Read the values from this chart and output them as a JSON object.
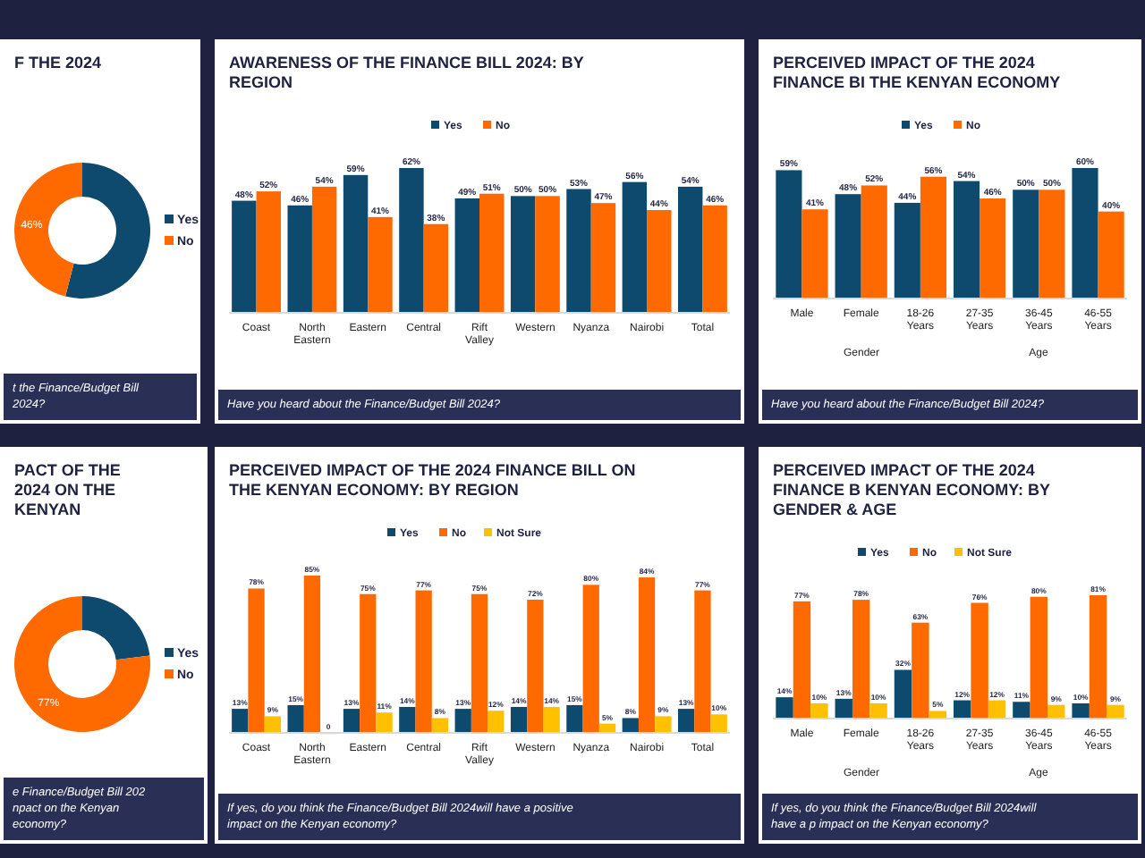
{
  "chart_data": [
    {
      "type": "donut",
      "title": "F THE 2024",
      "categories": [
        "Yes",
        "No"
      ],
      "values": [
        54,
        46
      ],
      "colors": [
        "#0d4a6e",
        "#ff6a00"
      ],
      "value_labels": [
        null,
        "46%"
      ],
      "legend": "right",
      "annotations": [
        "t the Finance/Budget Bill 2024?"
      ]
    },
    {
      "type": "bar",
      "title": "AWARENESS OF THE FINANCE BILL 2024: BY REGION",
      "categories": [
        "Coast",
        "North Eastern",
        "Eastern",
        "Central",
        "Rift Valley",
        "Western",
        "Nyanza",
        "Nairobi",
        "Total"
      ],
      "legend": "top",
      "series": [
        {
          "name": "Yes",
          "color": "#0d4a6e",
          "values": [
            48,
            46,
            59,
            62,
            49,
            50,
            53,
            56,
            54
          ],
          "value_labels": [
            "48%",
            "46%",
            "59%",
            "62%",
            "49%",
            "50%",
            "53%",
            "56%",
            "54%"
          ]
        },
        {
          "name": "No",
          "color": "#ff6a00",
          "values": [
            52,
            54,
            41,
            38,
            51,
            50,
            47,
            44,
            46
          ],
          "value_labels": [
            "52%",
            "54%",
            "41%",
            "38%",
            "51%",
            "50%",
            "47%",
            "44%",
            "46%"
          ]
        }
      ],
      "annotations": [
        "Have you heard about the Finance/Budget Bill 2024?"
      ]
    },
    {
      "type": "bar",
      "title": "PERCEIVED IMPACT OF THE 2024 FINANCE BI THE KENYAN ECONOMY",
      "categories": [
        "Male",
        "Female",
        "18-26 Years",
        "27-35 Years",
        "36-45 Years",
        "46-55 Years"
      ],
      "legend": "top",
      "series": [
        {
          "name": "Yes",
          "color": "#0d4a6e",
          "values": [
            59,
            48,
            44,
            54,
            50,
            60
          ],
          "value_labels": [
            "59%",
            "48%",
            "44%",
            "54%",
            "50%",
            "60%"
          ]
        },
        {
          "name": "No",
          "color": "#ff6a00",
          "values": [
            41,
            52,
            56,
            46,
            50,
            40
          ],
          "value_labels": [
            "41%",
            "52%",
            "56%",
            "46%",
            "50%",
            "40%"
          ]
        }
      ],
      "annotations": [
        "Have you heard about the Finance/Budget Bill 2024?",
        "Gender",
        "Age"
      ]
    },
    {
      "type": "donut",
      "title": "PACT OF THE 2024 ON THE KENYAN",
      "categories": [
        "Yes",
        "No"
      ],
      "values": [
        23,
        77
      ],
      "colors": [
        "#0d4a6e",
        "#ff6a00"
      ],
      "value_labels": [
        null,
        "77%"
      ],
      "legend": "right",
      "annotations": [
        "e Finance/Budget Bill 202 npact on the Kenyan economy?"
      ]
    },
    {
      "type": "bar",
      "title": "PERCEIVED IMPACT OF THE 2024 FINANCE BILL ON THE KENYAN ECONOMY: BY REGION",
      "categories": [
        "Coast",
        "North Eastern",
        "Eastern",
        "Central",
        "Rift Valley",
        "Western",
        "Nyanza",
        "Nairobi",
        "Total"
      ],
      "legend": "top",
      "series": [
        {
          "name": "Yes",
          "color": "#0d4a6e",
          "values": [
            13,
            15,
            13,
            14,
            13,
            14,
            15,
            8,
            13
          ],
          "value_labels": [
            "13%",
            "15%",
            "13%",
            "14%",
            "13%",
            "14%",
            "15%",
            "8%",
            "13%"
          ]
        },
        {
          "name": "No",
          "color": "#ff6a00",
          "values": [
            78,
            85,
            75,
            77,
            75,
            72,
            80,
            84,
            77
          ],
          "value_labels": [
            "78%",
            "85%",
            "75%",
            "77%",
            "75%",
            "72%",
            "80%",
            "84%",
            "77%"
          ]
        },
        {
          "name": "Not Sure",
          "color": "#ffc000",
          "values": [
            9,
            0,
            11,
            8,
            12,
            14,
            5,
            9,
            10
          ],
          "value_labels": [
            "9%",
            "0",
            "11%",
            "8%",
            "12%",
            "14%",
            "5%",
            "9%",
            "10%"
          ]
        }
      ],
      "annotations": [
        "If yes, do you think the Finance/Budget Bill 2024will have a positive impact on the Kenyan economy?"
      ]
    },
    {
      "type": "bar",
      "title": "PERCEIVED IMPACT OF THE 2024 FINANCE B KENYAN ECONOMY: BY GENDER & AGE",
      "categories": [
        "Male",
        "Female",
        "18-26 Years",
        "27-35 Years",
        "36-45 Years",
        "46-55 Years"
      ],
      "legend": "top",
      "series": [
        {
          "name": "Yes",
          "color": "#0d4a6e",
          "values": [
            14,
            13,
            32,
            12,
            11,
            10
          ],
          "value_labels": [
            "14%",
            "13%",
            "32%",
            "12%",
            "11%",
            "10%"
          ]
        },
        {
          "name": "No",
          "color": "#ff6a00",
          "values": [
            77,
            78,
            63,
            76,
            80,
            81
          ],
          "value_labels": [
            "77%",
            "78%",
            "63%",
            "76%",
            "80%",
            "81%"
          ]
        },
        {
          "name": "Not Sure",
          "color": "#ffc000",
          "values": [
            10,
            10,
            5,
            12,
            9,
            9
          ],
          "value_labels": [
            "10%",
            "10%",
            "5%",
            "12%",
            "9%",
            "9%"
          ]
        }
      ],
      "annotations": [
        "If yes, do you think the Finance/Budget Bill 2024will have a p impact on the Kenyan economy?",
        "Gender",
        "Age"
      ]
    }
  ]
}
